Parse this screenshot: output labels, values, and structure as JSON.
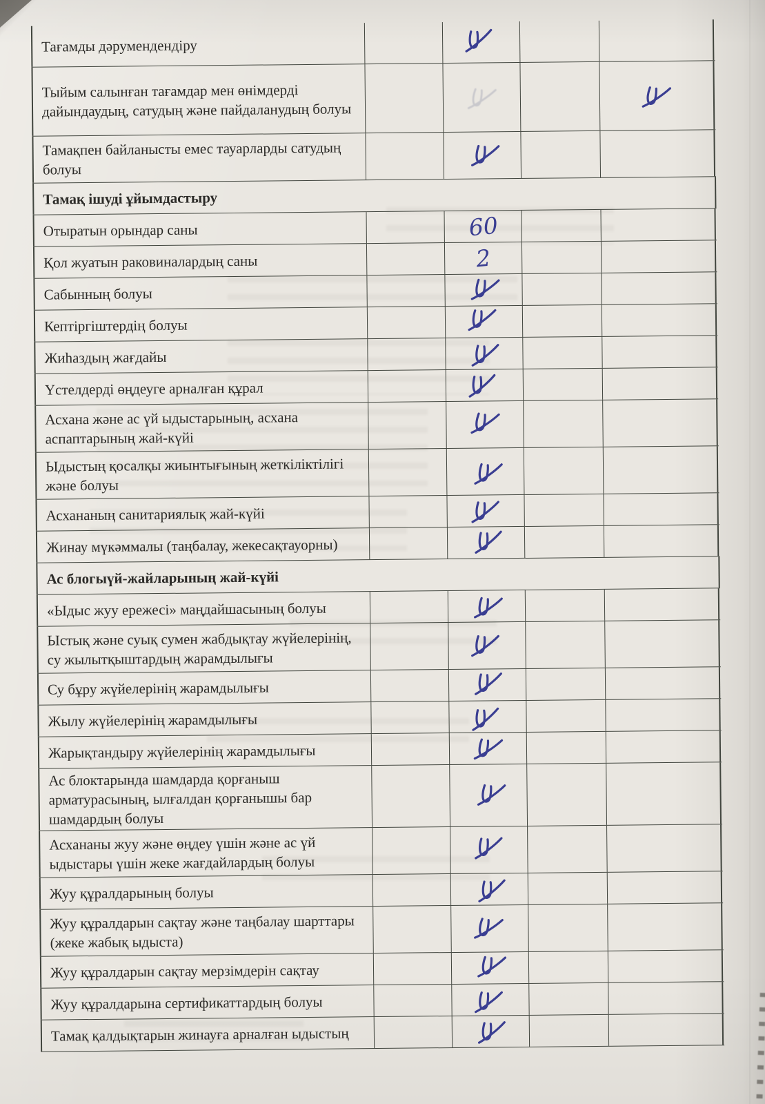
{
  "document": {
    "type": "scanned sanitary inspection checklist (table continuation, Kazakh)",
    "ink_color": "#3a3e92",
    "grid_color": "#41453e",
    "paper_color": "#eae7e1",
    "mark_glyph": "handwritten tse-like check",
    "rows": [
      {
        "type": "item",
        "label": "Тағамды дәрумендендіру",
        "marks": {
          "col2": "check"
        }
      },
      {
        "type": "item",
        "label": "Тыйым салынған тағамдар мен өнімдерді дайындаудың, сатудың және пайдаланудың болуы",
        "marks": {
          "col2": "ghost",
          "col4": "check"
        }
      },
      {
        "type": "item",
        "label": "Тамақпен байланысты емес тауарларды сатудың болуы",
        "marks": {
          "col2": "check"
        }
      },
      {
        "type": "section",
        "label": "Тамақ ішуді ұйымдастыру"
      },
      {
        "type": "item",
        "label": "Отыратын орындар саны",
        "marks": {
          "col2": "60"
        }
      },
      {
        "type": "item",
        "label": "Қол жуатын раковиналардың саны",
        "marks": {
          "col2": "2"
        }
      },
      {
        "type": "item",
        "label": "Сабынның болуы",
        "marks": {
          "col2": "check"
        }
      },
      {
        "type": "item",
        "label": "Кептіргіштердің болуы",
        "marks": {
          "col2": "check"
        }
      },
      {
        "type": "item",
        "label": "Жиһаздың жағдайы",
        "marks": {
          "col2": "check"
        }
      },
      {
        "type": "item",
        "label": "Үстелдерді өңдеуге арналған құрал",
        "marks": {
          "col2": "check"
        }
      },
      {
        "type": "item",
        "label": "Асхана және ас үй ыдыстарының, асхана аспаптарының жай-күйі",
        "marks": {
          "col2": "check"
        }
      },
      {
        "type": "item",
        "label": "Ыдыстың қосалқы жиынтығының жеткіліктілігі және болуы",
        "marks": {
          "col2": "check"
        }
      },
      {
        "type": "item",
        "label": "Асхананың санитариялық жай-күйі",
        "marks": {
          "col2": "check"
        }
      },
      {
        "type": "item",
        "label": "Жинау мүкәммалы (таңбалау, жекесақтауорны)",
        "marks": {
          "col2": "check"
        }
      },
      {
        "type": "section",
        "label": "Ас блогыүй-жайларының жай-күйі"
      },
      {
        "type": "item",
        "label": "«Ыдыс жуу ережесі» маңдайшасының болуы",
        "marks": {
          "col2": "check"
        }
      },
      {
        "type": "item",
        "label": "Ыстық және суық сумен жабдықтау жүйелерінің, су жылытқыштардың жарамдылығы",
        "marks": {
          "col2": "check"
        }
      },
      {
        "type": "item",
        "label": "Су бұру жүйелерінің жарамдылығы",
        "marks": {
          "col2": "check"
        }
      },
      {
        "type": "item",
        "label": "Жылу жүйелерінің жарамдылығы",
        "marks": {
          "col2": "check"
        }
      },
      {
        "type": "item",
        "label": "Жарықтандыру жүйелерінің жарамдылығы",
        "marks": {
          "col2": "check"
        }
      },
      {
        "type": "item",
        "label": "Ас блоктарында шамдарда қорғаныш арматурасының, ылғалдан қорғанышы бар шамдардың болуы",
        "marks": {
          "col2": "check"
        }
      },
      {
        "type": "item",
        "label": "Асхананы жуу және өңдеу үшін және ас үй ыдыстары үшін жеке жағдайлардың болуы",
        "marks": {
          "col2": "check"
        }
      },
      {
        "type": "item",
        "label": "Жуу құралдарының болуы",
        "marks": {
          "col2": "check"
        }
      },
      {
        "type": "item",
        "label": "Жуу құралдарын сақтау және таңбалау шарттары (жеке жабық ыдыста)",
        "marks": {
          "col2": "check"
        }
      },
      {
        "type": "item",
        "label": "Жуу құралдарын сақтау мерзімдерін сақтау",
        "marks": {
          "col2": "check"
        }
      },
      {
        "type": "item",
        "label": "Жуу құралдарына сертификаттардың болуы",
        "marks": {
          "col2": "check"
        }
      },
      {
        "type": "item",
        "label": "Тамақ қалдықтарын жинауға арналған ыдыстың",
        "marks": {
          "col2": "check"
        }
      }
    ]
  }
}
